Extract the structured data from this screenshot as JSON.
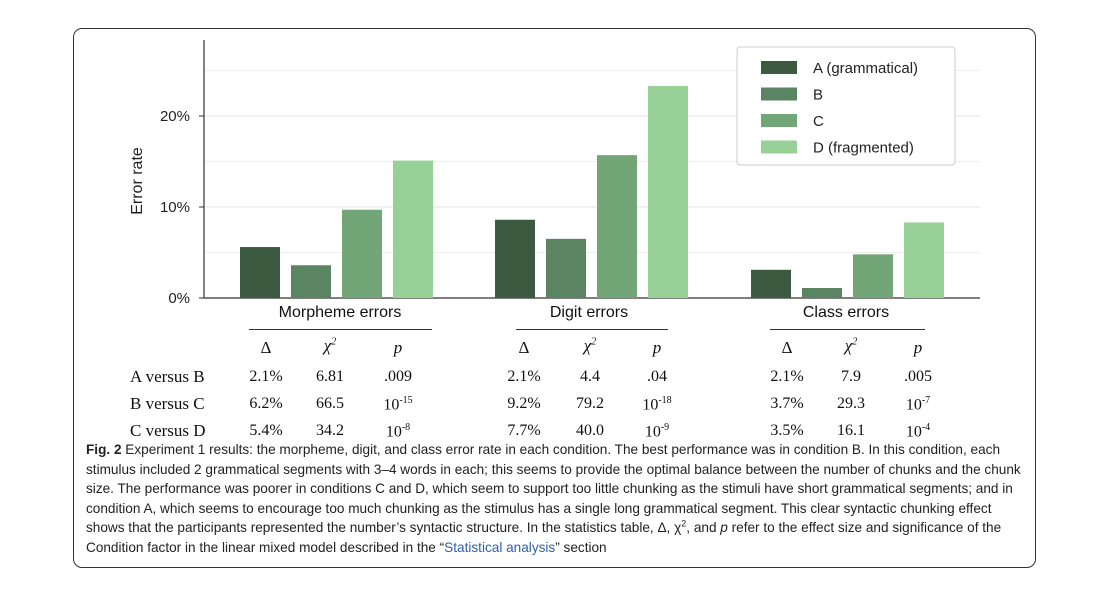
{
  "chart_data": {
    "type": "bar",
    "ylabel": "Error rate",
    "yticks": [
      "0%",
      "10%",
      "20%"
    ],
    "ylim": [
      0,
      27
    ],
    "categories": [
      "Morpheme errors",
      "Digit errors",
      "Class errors"
    ],
    "series": [
      {
        "name": "A (grammatical)",
        "color": "#3c5a40",
        "values": [
          5.6,
          8.6,
          3.1
        ]
      },
      {
        "name": "B",
        "color": "#5a8462",
        "values": [
          3.6,
          6.5,
          1.1
        ]
      },
      {
        "name": "C",
        "color": "#72a677",
        "values": [
          9.7,
          15.7,
          4.8
        ]
      },
      {
        "name": "D (fragmented)",
        "color": "#98d198",
        "values": [
          15.1,
          23.3,
          8.3
        ]
      }
    ],
    "legend_position": "top-right",
    "grid": true
  },
  "stats": {
    "headers": {
      "effect": "Δ",
      "chi": "χ",
      "chi_sup": "2",
      "p": "p"
    },
    "rows": [
      {
        "label": "A versus B",
        "groups": [
          {
            "delta": "2.1%",
            "chi": "6.81",
            "p": ".009",
            "p_sup": ""
          },
          {
            "delta": "2.1%",
            "chi": "4.4",
            "p": ".04",
            "p_sup": ""
          },
          {
            "delta": "2.1%",
            "chi": "7.9",
            "p": ".005",
            "p_sup": ""
          }
        ]
      },
      {
        "label": "B versus C",
        "groups": [
          {
            "delta": "6.2%",
            "chi": "66.5",
            "p": "10",
            "p_sup": "-15"
          },
          {
            "delta": "9.2%",
            "chi": "79.2",
            "p": "10",
            "p_sup": "-18"
          },
          {
            "delta": "3.7%",
            "chi": "29.3",
            "p": "10",
            "p_sup": "-7"
          }
        ]
      },
      {
        "label": "C versus D",
        "groups": [
          {
            "delta": "5.4%",
            "chi": "34.2",
            "p": "10",
            "p_sup": "-8"
          },
          {
            "delta": "7.7%",
            "chi": "40.0",
            "p": "10",
            "p_sup": "-9"
          },
          {
            "delta": "3.5%",
            "chi": "16.1",
            "p": "10",
            "p_sup": "-4"
          }
        ]
      }
    ]
  },
  "caption": {
    "label": "Fig. 2",
    "text_1": "Experiment 1 results: the morpheme, digit, and class error rate in each condition. The best performance was in condition B. In this condition, each stimulus included 2 grammatical segments with 3–4 words in each; this seems to provide the optimal balance between the number of chunks and the chunk size. The performance was poorer in conditions C and D, which seem to support too little chunking as the stimuli have short grammatical segments; and in condition A, which seems to encourage too much chunking as the stimulus has a single long grammatical segment. This clear syntactic chunking effect shows that the participants represented the number’s syntactic structure. In the statistics table, Δ, χ",
    "text_sup": "2",
    "text_2": ", and ",
    "text_p": "p",
    "text_3": " refer to the effect size and significance of the Condition factor in the linear mixed model described in the “",
    "link": "Statistical analysis",
    "text_4": "” section"
  }
}
